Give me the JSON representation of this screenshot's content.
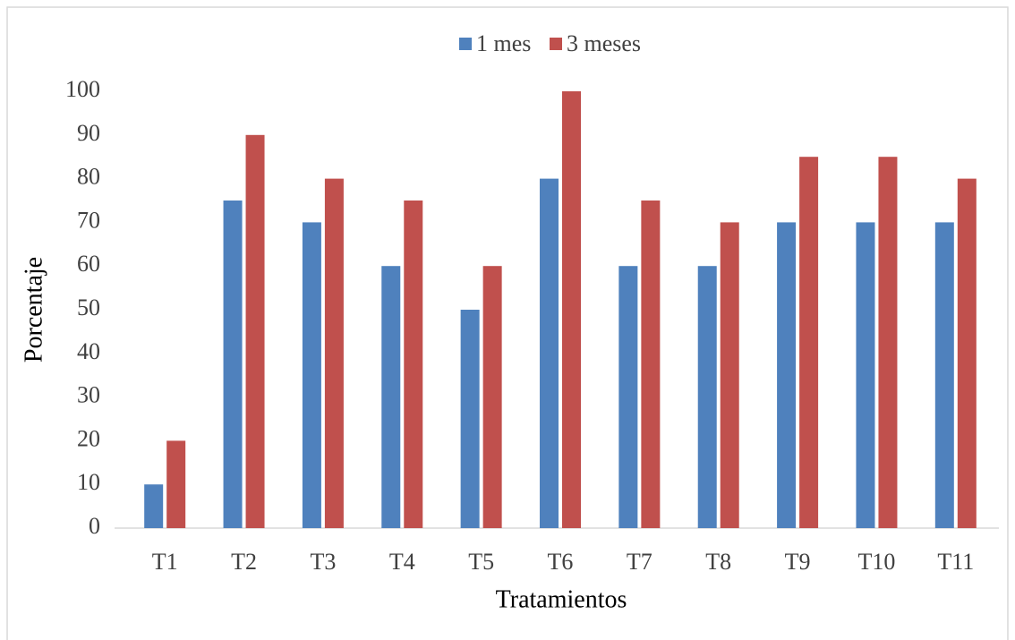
{
  "chart_data": {
    "type": "bar",
    "x_label": "Tratamientos",
    "y_label": "Porcentaje",
    "categories": [
      "T1",
      "T2",
      "T3",
      "T4",
      "T5",
      "T6",
      "T7",
      "T8",
      "T9",
      "T10",
      "T11"
    ],
    "series": [
      {
        "name": "1 mes",
        "color": "#4f81bd",
        "values": [
          10,
          75,
          70,
          60,
          50,
          80,
          60,
          60,
          70,
          70,
          70
        ]
      },
      {
        "name": "3 meses",
        "color": "#c0504d",
        "values": [
          20,
          90,
          80,
          75,
          60,
          100,
          75,
          70,
          85,
          85,
          80
        ]
      }
    ],
    "ylim": [
      0,
      100
    ],
    "yticks": [
      0,
      10,
      20,
      30,
      40,
      50,
      60,
      70,
      80,
      90,
      100
    ],
    "grid": false,
    "legend": "top"
  }
}
